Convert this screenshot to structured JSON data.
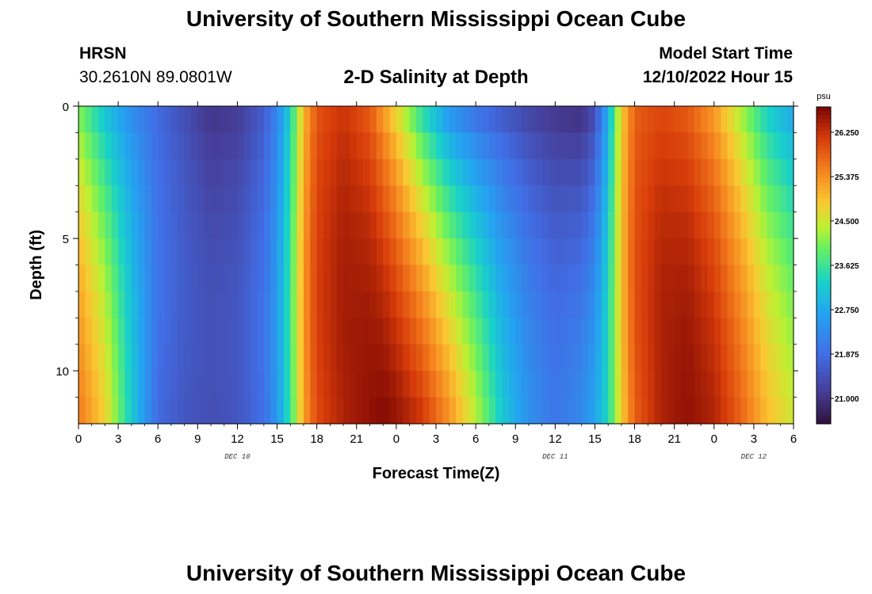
{
  "header": {
    "title": "University of Southern Mississippi Ocean Cube",
    "station": "HRSN",
    "coordinates": "30.2610N  89.0801W",
    "subtitle": "2-D Salinity at Depth",
    "model_start_label": "Model Start Time",
    "model_start_value": "12/10/2022 Hour 15",
    "bottom_title": "University of Southern Mississippi Ocean Cube"
  },
  "chart_data": {
    "type": "heatmap",
    "xlabel": "Forecast Time(Z)",
    "ylabel": "Depth (ft)",
    "x_tick_labels": [
      "0",
      "3",
      "6",
      "9",
      "12",
      "15",
      "18",
      "21",
      "0",
      "3",
      "6",
      "9",
      "12",
      "15",
      "18",
      "21",
      "0",
      "3",
      "6"
    ],
    "x_tick_hours": [
      0,
      3,
      6,
      9,
      12,
      15,
      18,
      21,
      24,
      27,
      30,
      33,
      36,
      39,
      42,
      45,
      48,
      51,
      54
    ],
    "x_range_hours": [
      0,
      54
    ],
    "day_labels": [
      {
        "text": "DEC 10",
        "hour": 12
      },
      {
        "text": "DEC 11",
        "hour": 36
      },
      {
        "text": "DEC 12",
        "hour": 51
      }
    ],
    "y_tick_labels": [
      "0",
      "5",
      "10"
    ],
    "y_tick_values": [
      0,
      5,
      10
    ],
    "y_range": [
      0,
      12
    ],
    "y_inverted": true,
    "colorbar": {
      "unit": "psu",
      "min": 20.5,
      "max": 26.75,
      "tick_labels": [
        "26.250",
        "25.375",
        "24.500",
        "23.625",
        "22.750",
        "21.875",
        "21.000"
      ],
      "tick_values": [
        26.25,
        25.375,
        24.5,
        23.625,
        22.75,
        21.875,
        21.0
      ]
    },
    "salinity_profile": {
      "description_hours": [
        0,
        2,
        4,
        6,
        8,
        10,
        12,
        14,
        15,
        16,
        17,
        18,
        20,
        22,
        23,
        24,
        26,
        28,
        30,
        32,
        34,
        36,
        38,
        39,
        40,
        41,
        42,
        44,
        46,
        48,
        50,
        52,
        54
      ],
      "surface_psu": [
        24.0,
        23.0,
        22.3,
        21.8,
        21.4,
        21.0,
        21.1,
        21.6,
        22.2,
        23.3,
        25.0,
        25.9,
        26.2,
        25.8,
        25.2,
        24.6,
        23.3,
        22.3,
        21.8,
        21.5,
        21.2,
        21.0,
        20.9,
        21.3,
        22.8,
        24.8,
        25.8,
        26.0,
        25.8,
        25.2,
        24.2,
        23.2,
        22.6
      ],
      "bottom_psu": [
        25.6,
        24.8,
        23.2,
        21.8,
        21.5,
        21.4,
        21.5,
        21.9,
        22.5,
        23.6,
        25.2,
        26.0,
        26.4,
        26.6,
        26.7,
        26.6,
        26.2,
        25.4,
        24.4,
        23.2,
        22.4,
        22.0,
        22.3,
        22.7,
        23.4,
        24.8,
        25.8,
        26.4,
        26.6,
        26.4,
        25.8,
        25.0,
        24.5
      ],
      "peak_depth_ft": 8
    }
  }
}
